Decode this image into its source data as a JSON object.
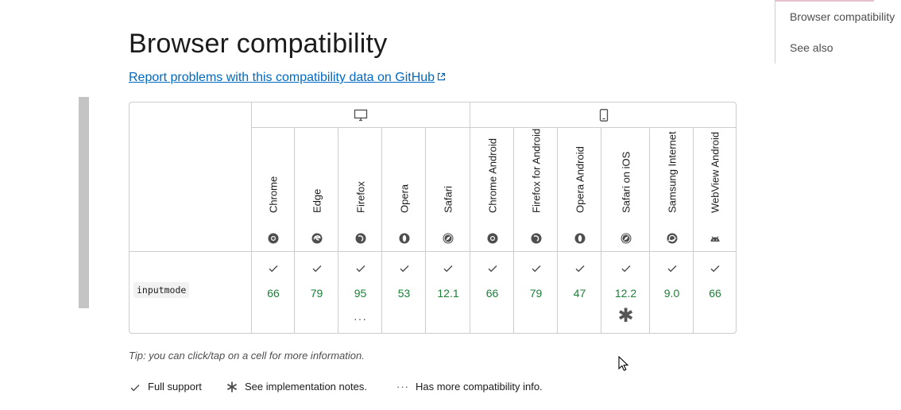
{
  "toc": {
    "items": [
      "Browser compatibility",
      "See also"
    ]
  },
  "page": {
    "title": "Browser compatibility",
    "report_link": "Report problems with this compatibility data on GitHub"
  },
  "table": {
    "platforms": [
      {
        "name": "desktop",
        "icon": "desktop-icon"
      },
      {
        "name": "mobile",
        "icon": "mobile-icon"
      }
    ],
    "browsers": [
      {
        "name": "Chrome",
        "icon": "chrome-icon",
        "version": "66",
        "more_info": false,
        "note": false
      },
      {
        "name": "Edge",
        "icon": "edge-icon",
        "version": "79",
        "more_info": false,
        "note": false
      },
      {
        "name": "Firefox",
        "icon": "firefox-icon",
        "version": "95",
        "more_info": true,
        "note": false
      },
      {
        "name": "Opera",
        "icon": "opera-icon",
        "version": "53",
        "more_info": false,
        "note": false
      },
      {
        "name": "Safari",
        "icon": "safari-icon",
        "version": "12.1",
        "more_info": false,
        "note": false
      },
      {
        "name": "Chrome Android",
        "icon": "chrome-icon",
        "version": "66",
        "more_info": false,
        "note": false
      },
      {
        "name": "Firefox for Android",
        "icon": "firefox-icon",
        "version": "79",
        "more_info": false,
        "note": false
      },
      {
        "name": "Opera Android",
        "icon": "opera-icon",
        "version": "47",
        "more_info": false,
        "note": false
      },
      {
        "name": "Safari on iOS",
        "icon": "safari-icon",
        "version": "12.2",
        "more_info": false,
        "note": true
      },
      {
        "name": "Samsung Internet",
        "icon": "samsung-internet-icon",
        "version": "9.0",
        "more_info": false,
        "note": false
      },
      {
        "name": "WebView Android",
        "icon": "android-icon",
        "version": "66",
        "more_info": false,
        "note": false
      }
    ],
    "feature": "inputmode",
    "more_info_glyph": "···",
    "note_glyph": "✱"
  },
  "tip": "Tip: you can click/tap on a cell for more information.",
  "legend": {
    "full_support": "Full support",
    "impl_notes": "See implementation notes.",
    "more_info": "Has more compatibility info."
  },
  "colors": {
    "link": "#0069c2",
    "support_green": "#1a7f37",
    "border": "#cdcdcd"
  }
}
